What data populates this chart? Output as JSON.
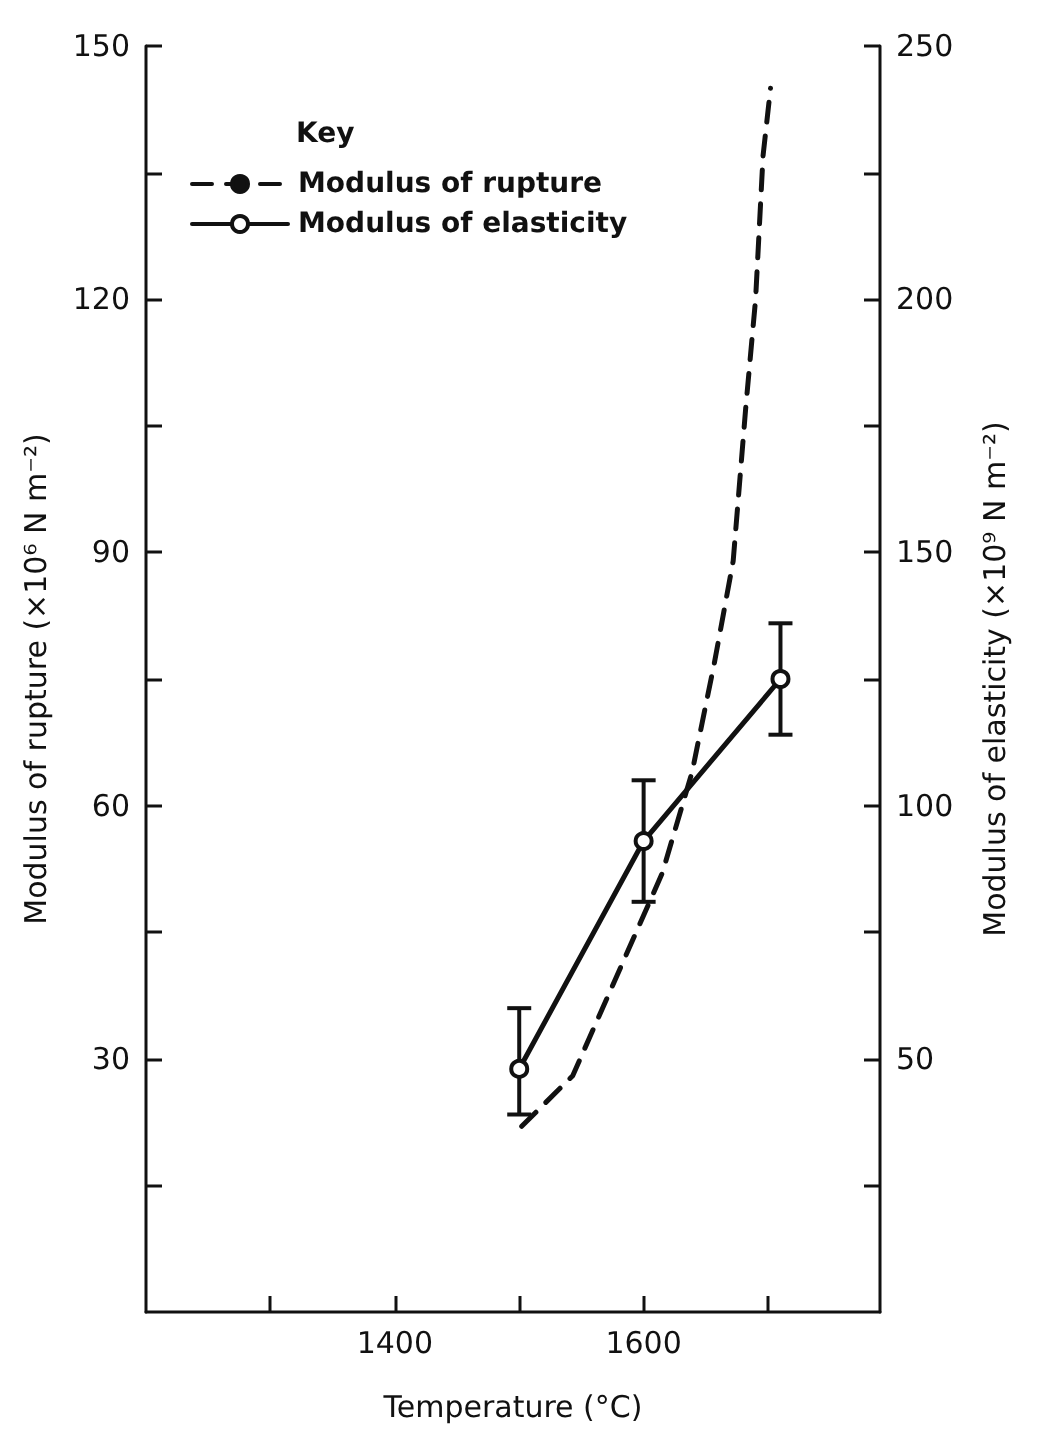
{
  "chart_data": {
    "type": "line",
    "xlabel": "Temperature (°C)",
    "ylabel": "Modulus of rupture (×10⁶ N m⁻²)",
    "y2label": "Modulus of elasticity (×10⁹ N m⁻²)",
    "legend_title": "Key",
    "series": [
      {
        "name": "Modulus of rupture",
        "color": "#111111",
        "line_style": "dashed",
        "marker": "none",
        "x": [
          1502,
          1543,
          1585,
          1615,
          1639,
          1657,
          1672,
          1682,
          1690,
          1696,
          1702
        ],
        "values": [
          22,
          28,
          42,
          52,
          64,
          77,
          89,
          107,
          120,
          137,
          145
        ]
      },
      {
        "name": "Modulus of elasticity",
        "color": "#111111",
        "line_style": "solid",
        "marker": "circle",
        "axis": "y2",
        "x": [
          1500,
          1600,
          1710
        ],
        "values": [
          48,
          93,
          125
        ],
        "errors": [
          [
            39,
            60
          ],
          [
            81,
            105
          ],
          [
            114,
            136
          ]
        ]
      }
    ],
    "xlim": [
      1200,
      1790
    ],
    "xticks": [
      {
        "value": 1300,
        "label": null
      },
      1400,
      {
        "value": 1500,
        "label": null
      },
      1600,
      {
        "value": 1700,
        "label": null
      }
    ],
    "ylim": [
      0,
      150
    ],
    "yticks": [
      {
        "value": 15,
        "label": null
      },
      30,
      {
        "value": 45,
        "label": null
      },
      60,
      {
        "value": 75,
        "label": null
      },
      90,
      {
        "value": 105,
        "label": null
      },
      120,
      {
        "value": 135,
        "label": null
      },
      150
    ],
    "y2lim": [
      0,
      250
    ],
    "y2ticks": [
      {
        "value": 25,
        "label": null
      },
      50,
      {
        "value": 75,
        "label": null
      },
      100,
      {
        "value": 125,
        "label": null
      },
      150,
      {
        "value": 175,
        "label": null
      },
      200,
      {
        "value": 225,
        "label": null
      },
      250
    ],
    "legend": "top left",
    "grid": false
  }
}
